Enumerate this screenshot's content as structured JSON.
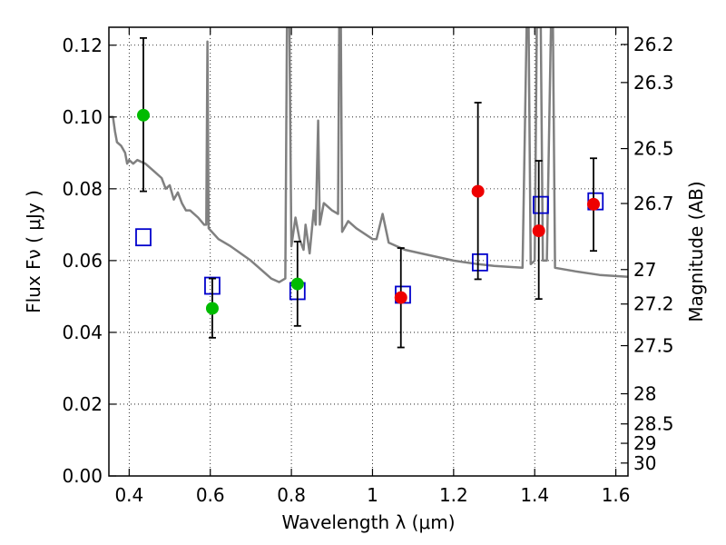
{
  "chart_data": {
    "type": "scatter",
    "xlabel": "Wavelength  λ (μm)",
    "ylabel": "Flux  Fν ( μJy )",
    "ylabel2": "Magnitude (AB)",
    "xlim": [
      0.35,
      1.63
    ],
    "ylim": [
      0.0,
      0.125
    ],
    "grid": true,
    "x_ticks": [
      0.4,
      0.6,
      0.8,
      1.0,
      1.2,
      1.4,
      1.6
    ],
    "x_tick_labels": [
      "0.4",
      "0.6",
      "0.8",
      "1",
      "1.2",
      "1.4",
      "1.6"
    ],
    "y_ticks": [
      0.0,
      0.02,
      0.04,
      0.06,
      0.08,
      0.1,
      0.12
    ],
    "y_tick_labels": [
      "0.00",
      "0.02",
      "0.04",
      "0.06",
      "0.08",
      "0.10",
      "0.12"
    ],
    "mag_ticks": [
      {
        "label": "26.2",
        "flux": 0.1202
      },
      {
        "label": "26.3",
        "flux": 0.1096
      },
      {
        "label": "26.5",
        "flux": 0.0912
      },
      {
        "label": "26.7",
        "flux": 0.0759
      },
      {
        "label": "27",
        "flux": 0.0575
      },
      {
        "label": "27.2",
        "flux": 0.0479
      },
      {
        "label": "27.5",
        "flux": 0.0363
      },
      {
        "label": "28",
        "flux": 0.0229
      },
      {
        "label": "28.5",
        "flux": 0.0145
      },
      {
        "label": "29",
        "flux": 0.0091
      },
      {
        "label": "30",
        "flux": 0.0036
      }
    ],
    "series": [
      {
        "kind": "model-spectrum",
        "color": "#808080",
        "points": [
          [
            0.35,
            0.1
          ],
          [
            0.36,
            0.1
          ],
          [
            0.365,
            0.096
          ],
          [
            0.37,
            0.093
          ],
          [
            0.38,
            0.092
          ],
          [
            0.39,
            0.09
          ],
          [
            0.395,
            0.087
          ],
          [
            0.4,
            0.088
          ],
          [
            0.41,
            0.087
          ],
          [
            0.42,
            0.088
          ],
          [
            0.44,
            0.087
          ],
          [
            0.46,
            0.085
          ],
          [
            0.48,
            0.083
          ],
          [
            0.49,
            0.08
          ],
          [
            0.5,
            0.081
          ],
          [
            0.51,
            0.077
          ],
          [
            0.52,
            0.079
          ],
          [
            0.53,
            0.076
          ],
          [
            0.54,
            0.074
          ],
          [
            0.55,
            0.074
          ],
          [
            0.57,
            0.072
          ],
          [
            0.585,
            0.07
          ],
          [
            0.59,
            0.07
          ],
          [
            0.593,
            0.121
          ],
          [
            0.596,
            0.069
          ],
          [
            0.62,
            0.066
          ],
          [
            0.65,
            0.064
          ],
          [
            0.7,
            0.06
          ],
          [
            0.75,
            0.055
          ],
          [
            0.77,
            0.054
          ],
          [
            0.785,
            0.055
          ],
          [
            0.789,
            0.125
          ],
          [
            0.795,
            0.125
          ],
          [
            0.8,
            0.064
          ],
          [
            0.81,
            0.072
          ],
          [
            0.82,
            0.066
          ],
          [
            0.83,
            0.063
          ],
          [
            0.835,
            0.07
          ],
          [
            0.845,
            0.062
          ],
          [
            0.855,
            0.074
          ],
          [
            0.86,
            0.07
          ],
          [
            0.866,
            0.099
          ],
          [
            0.87,
            0.07
          ],
          [
            0.88,
            0.076
          ],
          [
            0.9,
            0.074
          ],
          [
            0.915,
            0.073
          ],
          [
            0.918,
            0.125
          ],
          [
            0.922,
            0.125
          ],
          [
            0.925,
            0.068
          ],
          [
            0.94,
            0.071
          ],
          [
            0.96,
            0.069
          ],
          [
            1.0,
            0.066
          ],
          [
            1.01,
            0.066
          ],
          [
            1.025,
            0.073
          ],
          [
            1.04,
            0.065
          ],
          [
            1.06,
            0.064
          ],
          [
            1.08,
            0.063
          ],
          [
            1.12,
            0.062
          ],
          [
            1.2,
            0.06
          ],
          [
            1.26,
            0.059
          ],
          [
            1.3,
            0.0585
          ],
          [
            1.37,
            0.058
          ],
          [
            1.38,
            0.125
          ],
          [
            1.385,
            0.125
          ],
          [
            1.39,
            0.059
          ],
          [
            1.4,
            0.06
          ],
          [
            1.405,
            0.125
          ],
          [
            1.415,
            0.125
          ],
          [
            1.42,
            0.06
          ],
          [
            1.43,
            0.06
          ],
          [
            1.44,
            0.125
          ],
          [
            1.445,
            0.125
          ],
          [
            1.45,
            0.058
          ],
          [
            1.5,
            0.057
          ],
          [
            1.56,
            0.056
          ],
          [
            1.63,
            0.0555
          ]
        ]
      },
      {
        "kind": "model-photometry",
        "marker": "open-square",
        "color": "#0000cc",
        "points": [
          [
            0.435,
            0.0665
          ],
          [
            0.605,
            0.053
          ],
          [
            0.815,
            0.0515
          ],
          [
            1.075,
            0.0505
          ],
          [
            1.265,
            0.0595
          ],
          [
            1.415,
            0.0755
          ],
          [
            1.55,
            0.0765
          ]
        ]
      },
      {
        "kind": "detections-green",
        "marker": "filled-circle",
        "color": "#00bb00",
        "points": [
          {
            "x": 0.435,
            "y": 0.1005,
            "ylo": 0.0793,
            "yhi": 0.122
          },
          {
            "x": 0.605,
            "y": 0.0467,
            "ylo": 0.0385,
            "yhi": 0.055
          },
          {
            "x": 0.815,
            "y": 0.0535,
            "ylo": 0.0418,
            "yhi": 0.0653
          }
        ]
      },
      {
        "kind": "detections-red",
        "marker": "filled-circle",
        "color": "#ee0000",
        "points": [
          {
            "x": 1.07,
            "y": 0.0497,
            "ylo": 0.0358,
            "yhi": 0.0635
          },
          {
            "x": 1.26,
            "y": 0.0793,
            "ylo": 0.0548,
            "yhi": 0.104
          },
          {
            "x": 1.41,
            "y": 0.0683,
            "ylo": 0.0493,
            "yhi": 0.0878
          },
          {
            "x": 1.545,
            "y": 0.0757,
            "ylo": 0.0627,
            "yhi": 0.0885
          }
        ]
      }
    ]
  }
}
